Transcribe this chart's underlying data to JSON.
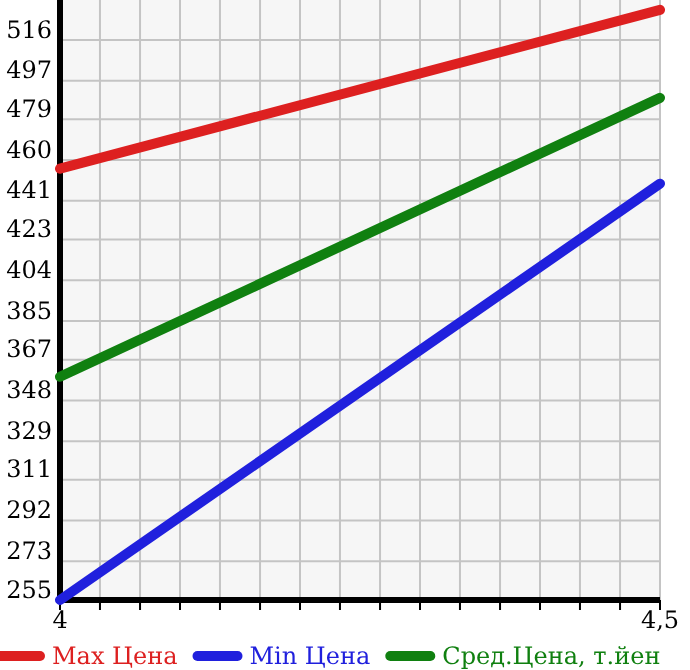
{
  "chart_data": {
    "type": "line",
    "x": [
      4,
      4.5
    ],
    "series": [
      {
        "name": "Max Цена",
        "color": "#dd2020",
        "values": [
          456,
          530
        ]
      },
      {
        "name": "Min Цена",
        "color": "#2020dd",
        "values": [
          255,
          449
        ]
      },
      {
        "name": "Сред.Цена, т.йен",
        "color": "#108010",
        "values": [
          359,
          489
        ]
      }
    ],
    "xlim": [
      4,
      4.5
    ],
    "xticks": [
      4,
      {
        "value": 4.0333,
        "label": null
      },
      {
        "value": 4.0667,
        "label": null
      },
      {
        "value": 4.1,
        "label": null
      },
      {
        "value": 4.1333,
        "label": null
      },
      {
        "value": 4.1667,
        "label": null
      },
      {
        "value": 4.2,
        "label": null
      },
      {
        "value": 4.2333,
        "label": null
      },
      {
        "value": 4.2667,
        "label": null
      },
      {
        "value": 4.3,
        "label": null
      },
      {
        "value": 4.3333,
        "label": null
      },
      {
        "value": 4.3667,
        "label": null
      },
      {
        "value": 4.4,
        "label": null
      },
      {
        "value": 4.4333,
        "label": null
      },
      {
        "value": 4.4667,
        "label": null
      },
      {
        "value": 4.5,
        "label": "4,5"
      }
    ],
    "ylim": [
      255,
      534.6
    ],
    "yticks": [
      255,
      273,
      292,
      311,
      329,
      348,
      367,
      385,
      404,
      423,
      441,
      460,
      479,
      497,
      516
    ],
    "grid": true,
    "legend": "bottom",
    "marker": "none",
    "line_style": "solid"
  }
}
